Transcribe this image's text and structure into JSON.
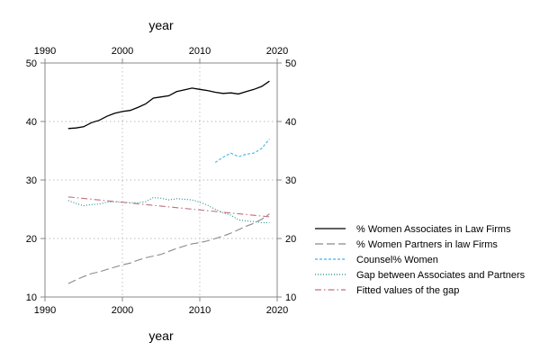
{
  "chart_data": {
    "type": "line",
    "xlabel_top": "year",
    "xlabel_bottom": "year",
    "xlim": [
      1990,
      2020
    ],
    "ylim": [
      10,
      50
    ],
    "x_ticks": [
      1990,
      2000,
      2010,
      2020
    ],
    "y_ticks": [
      10,
      20,
      30,
      40,
      50
    ],
    "grid": true,
    "legend_position": "right",
    "series": [
      {
        "name": "% Women Associates in Law Firms",
        "color": "#000000",
        "style": "solid",
        "x": [
          1993,
          1994,
          1995,
          1996,
          1997,
          1998,
          1999,
          2000,
          2001,
          2002,
          2003,
          2004,
          2005,
          2006,
          2007,
          2008,
          2009,
          2010,
          2011,
          2012,
          2013,
          2014,
          2015,
          2016,
          2017,
          2018,
          2019
        ],
        "y": [
          38.8,
          38.9,
          39.1,
          39.8,
          40.2,
          40.9,
          41.4,
          41.7,
          41.9,
          42.4,
          43.0,
          44.0,
          44.2,
          44.4,
          45.1,
          45.4,
          45.7,
          45.5,
          45.3,
          45.0,
          44.8,
          44.9,
          44.7,
          45.1,
          45.5,
          46.0,
          46.9
        ]
      },
      {
        "name": "% Women Partners in law Firms",
        "color": "#8a8a8a",
        "style": "longdash",
        "x": [
          1993,
          1994,
          1995,
          1996,
          1997,
          1998,
          1999,
          2000,
          2001,
          2002,
          2003,
          2004,
          2005,
          2006,
          2007,
          2008,
          2009,
          2010,
          2011,
          2012,
          2013,
          2014,
          2015,
          2016,
          2017,
          2018,
          2019
        ],
        "y": [
          12.3,
          12.9,
          13.5,
          14.0,
          14.3,
          14.7,
          15.1,
          15.5,
          15.8,
          16.3,
          16.7,
          17.0,
          17.3,
          17.8,
          18.3,
          18.7,
          19.1,
          19.3,
          19.6,
          20.0,
          20.4,
          20.9,
          21.5,
          22.1,
          22.6,
          23.3,
          24.2
        ]
      },
      {
        "name": "Counsel% Women",
        "color": "#3fb5ea",
        "style": "shortdash",
        "x": [
          2012,
          2013,
          2014,
          2015,
          2016,
          2017,
          2018,
          2019
        ],
        "y": [
          33.0,
          33.9,
          34.6,
          34.0,
          34.4,
          34.6,
          35.4,
          37.0
        ]
      },
      {
        "name": "Gap between Associates and Partners",
        "color": "#1a8a8a",
        "style": "dotted",
        "x": [
          1993,
          1994,
          1995,
          1996,
          1997,
          1998,
          1999,
          2000,
          2001,
          2002,
          2003,
          2004,
          2005,
          2006,
          2007,
          2008,
          2009,
          2010,
          2011,
          2012,
          2013,
          2014,
          2015,
          2016,
          2017,
          2018,
          2019
        ],
        "y": [
          26.5,
          26.0,
          25.6,
          25.8,
          25.9,
          26.2,
          26.3,
          26.2,
          26.1,
          26.1,
          26.3,
          27.0,
          26.9,
          26.6,
          26.8,
          26.7,
          26.6,
          26.2,
          25.7,
          25.0,
          24.4,
          24.0,
          23.2,
          23.0,
          22.9,
          22.7,
          22.7
        ]
      },
      {
        "name": "Fitted values of the gap",
        "color": "#c07080",
        "style": "dashdot",
        "x": [
          1993,
          2019
        ],
        "y": [
          27.1,
          23.7
        ]
      }
    ]
  }
}
